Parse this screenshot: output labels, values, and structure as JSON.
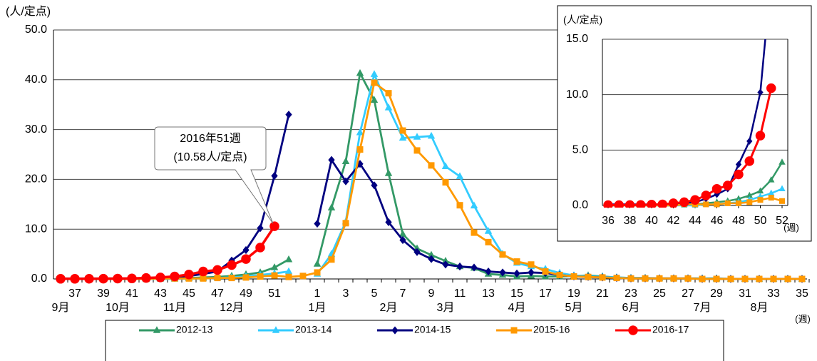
{
  "chart_data": [
    {
      "type": "line",
      "y_label": "(人/定点)",
      "x_unit": "(週)",
      "categories": [
        null,
        "37",
        null,
        "39",
        null,
        "41",
        null,
        "43",
        null,
        "45",
        null,
        "47",
        null,
        "49",
        null,
        "51",
        null,
        null,
        "1",
        null,
        "3",
        null,
        "5",
        null,
        "7",
        null,
        "9",
        null,
        "11",
        null,
        "13",
        null,
        "15",
        null,
        "17",
        null,
        "19",
        null,
        "21",
        null,
        "23",
        null,
        "25",
        null,
        "27",
        null,
        "29",
        null,
        "31",
        null,
        "33",
        null,
        "35"
      ],
      "months": [
        "9月",
        null,
        null,
        null,
        "10月",
        null,
        null,
        null,
        "11月",
        null,
        null,
        null,
        "12月",
        null,
        null,
        null,
        null,
        null,
        "1月",
        null,
        null,
        null,
        null,
        "2月",
        null,
        null,
        null,
        "3月",
        null,
        null,
        null,
        null,
        "4月",
        null,
        null,
        null,
        "5月",
        null,
        null,
        null,
        "6月",
        null,
        null,
        null,
        null,
        "7月",
        null,
        null,
        null,
        "8月",
        null,
        null,
        null
      ],
      "ylim": [
        0,
        50
      ],
      "yticks": [
        {
          "value": 0,
          "label": "0.0"
        },
        {
          "value": 10,
          "label": "10.0"
        },
        {
          "value": 20,
          "label": "20.0"
        },
        {
          "value": 30,
          "label": "30.0"
        },
        {
          "value": 40,
          "label": "40.0"
        },
        {
          "value": 50,
          "label": "50.0"
        }
      ],
      "grid": true,
      "annotation": [
        "2016年51週",
        "(10.58人/定点)"
      ],
      "legend": "bottom",
      "series": [
        {
          "name": "2012-13",
          "color": "#339966",
          "marker": "triangle",
          "values": [
            0,
            0,
            0,
            0,
            0,
            0,
            0,
            0.1,
            0.1,
            0.2,
            0.3,
            0.4,
            0.6,
            0.9,
            1.3,
            2.3,
            3.9,
            null,
            3.0,
            14.3,
            23.6,
            41.3,
            35.9,
            21.2,
            9.0,
            6.1,
            4.8,
            3.6,
            2.5,
            2.2,
            1.0,
            0.8,
            0.5,
            0.6,
            0.5,
            0.5,
            0.6,
            0.7,
            0.5,
            0.3,
            0.2,
            0.2,
            0.1,
            0.1,
            0.1,
            0.1,
            0.1,
            0,
            0,
            0,
            0,
            0,
            0
          ]
        },
        {
          "name": "2013-14",
          "color": "#33ccff",
          "marker": "triangle",
          "values": [
            0,
            0,
            0,
            0,
            0,
            0,
            0,
            0,
            0,
            0.1,
            0.1,
            0.2,
            0.3,
            0.5,
            0.8,
            1.1,
            1.5,
            null,
            1.0,
            5.0,
            11.5,
            29.4,
            41.1,
            34.4,
            28.3,
            28.5,
            28.7,
            22.6,
            20.6,
            14.7,
            9.6,
            5.0,
            3.2,
            2.5,
            2.0,
            1.2,
            0.7,
            0.5,
            0.4,
            0.3,
            0.2,
            0.1,
            0.1,
            0.1,
            0.1,
            0.1,
            0,
            0,
            0,
            0,
            0,
            0,
            0
          ]
        },
        {
          "name": "2014-15",
          "color": "#000080",
          "marker": "diamond",
          "values": [
            0.1,
            0.1,
            0.1,
            0.1,
            0.1,
            0.1,
            0.2,
            0.2,
            0.3,
            0.6,
            1.0,
            1.5,
            3.7,
            5.8,
            10.2,
            20.7,
            33.0,
            null,
            11.1,
            23.9,
            19.6,
            23.1,
            18.8,
            11.4,
            7.8,
            5.4,
            4.0,
            2.9,
            2.5,
            2.3,
            1.5,
            1.3,
            1.1,
            1.3,
            1.2,
            0.8,
            0.5,
            0.4,
            0.3,
            0.2,
            0.1,
            0.1,
            0.1,
            0.1,
            0.1,
            0,
            0,
            0,
            0,
            0,
            0,
            0,
            0
          ]
        },
        {
          "name": "2015-16",
          "color": "#ff9900",
          "marker": "square",
          "values": [
            0,
            0,
            0,
            0,
            0,
            0,
            0,
            0.1,
            0.1,
            0.1,
            0.1,
            0.2,
            0.2,
            0.3,
            0.5,
            0.7,
            0.4,
            0.6,
            1.3,
            3.9,
            11.2,
            26.0,
            39.4,
            37.3,
            29.8,
            25.8,
            22.8,
            19.4,
            14.8,
            9.3,
            7.4,
            4.9,
            3.5,
            2.9,
            1.5,
            0.8,
            0.5,
            0.4,
            0.3,
            0.2,
            0.1,
            0.1,
            0.1,
            0.1,
            0.1,
            0,
            0,
            0,
            0,
            0,
            0,
            0,
            0
          ]
        },
        {
          "name": "2016-17",
          "color": "#ff0000",
          "marker": "circle",
          "values": [
            0.03,
            0.03,
            0.04,
            0.05,
            0.08,
            0.1,
            0.2,
            0.3,
            0.5,
            0.9,
            1.5,
            1.8,
            2.8,
            4.0,
            6.3,
            10.58,
            null,
            null,
            null,
            null,
            null,
            null,
            null,
            null,
            null,
            null,
            null,
            null,
            null,
            null,
            null,
            null,
            null,
            null,
            null,
            null,
            null,
            null,
            null,
            null,
            null,
            null,
            null,
            null,
            null,
            null,
            null,
            null,
            null,
            null,
            null,
            null,
            null
          ]
        }
      ]
    },
    {
      "type": "inset-line",
      "y_label": "(人/定点)",
      "x_unit": "(週)",
      "xlim": [
        36,
        52
      ],
      "xticks": [
        36,
        38,
        40,
        42,
        44,
        46,
        48,
        50,
        52
      ],
      "ylim": [
        0,
        15
      ],
      "yticks": [
        {
          "value": 0,
          "label": "0.0"
        },
        {
          "value": 5,
          "label": "5.0"
        },
        {
          "value": 10,
          "label": "10.0"
        },
        {
          "value": 15,
          "label": "15.0"
        }
      ],
      "grid": true
    }
  ]
}
